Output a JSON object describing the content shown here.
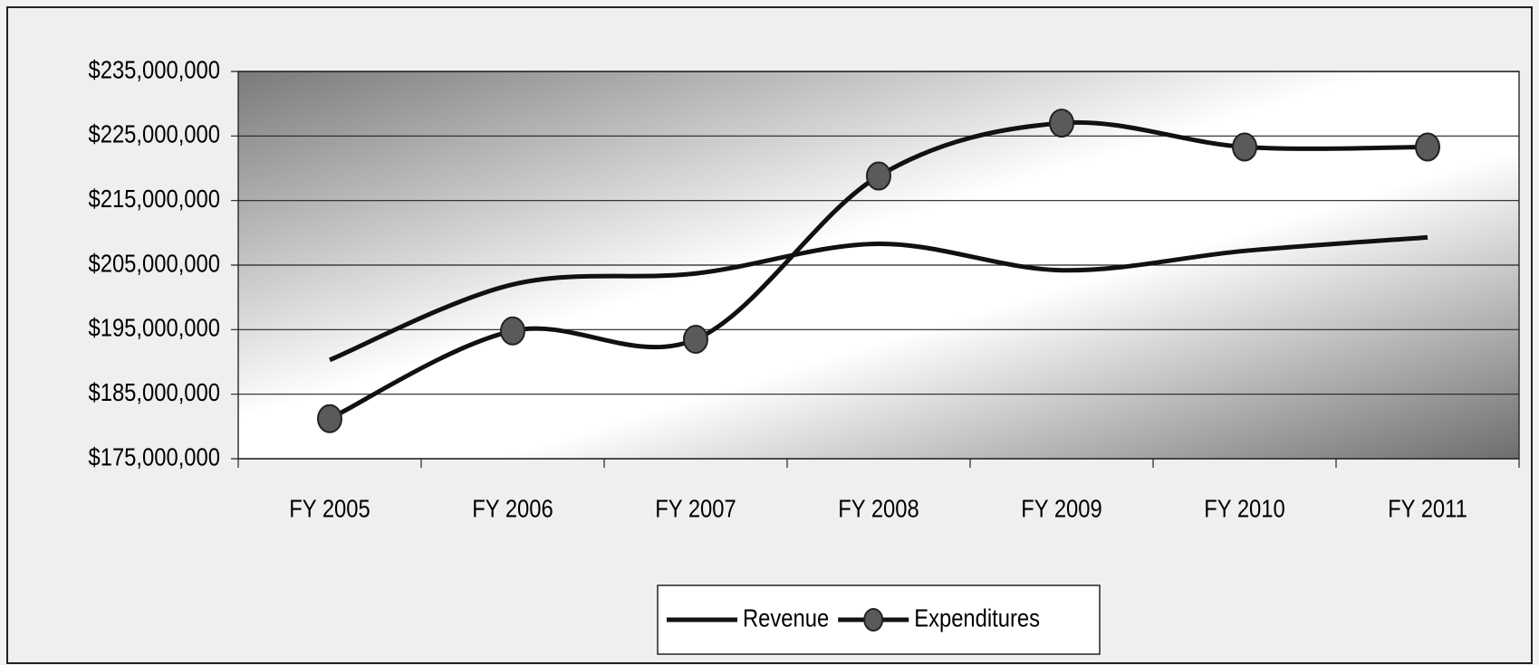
{
  "chart_data": {
    "type": "line",
    "categories": [
      "FY 2005",
      "FY 2006",
      "FY 2007",
      "FY 2008",
      "FY 2009",
      "FY 2010",
      "FY 2011"
    ],
    "series": [
      {
        "name": "Revenue",
        "color": "#111111",
        "marker": false,
        "values": [
          190300000,
          202000000,
          203700000,
          208300000,
          204200000,
          207200000,
          209300000
        ]
      },
      {
        "name": "Expenditures",
        "color": "#111111",
        "marker": true,
        "marker_color": "#5a5a5a",
        "values": [
          181200000,
          194800000,
          193500000,
          218800000,
          227000000,
          223300000,
          223300000
        ]
      }
    ],
    "ylim": [
      175000000,
      235000000
    ],
    "yticks": [
      {
        "value": 175000000,
        "label": "$175,000,000"
      },
      {
        "value": 185000000,
        "label": "$185,000,000"
      },
      {
        "value": 195000000,
        "label": "$195,000,000"
      },
      {
        "value": 205000000,
        "label": "$205,000,000"
      },
      {
        "value": 215000000,
        "label": "$215,000,000"
      },
      {
        "value": 225000000,
        "label": "$225,000,000"
      },
      {
        "value": 235000000,
        "label": "$235,000,000"
      }
    ],
    "grid": true,
    "legend": "bottom"
  }
}
